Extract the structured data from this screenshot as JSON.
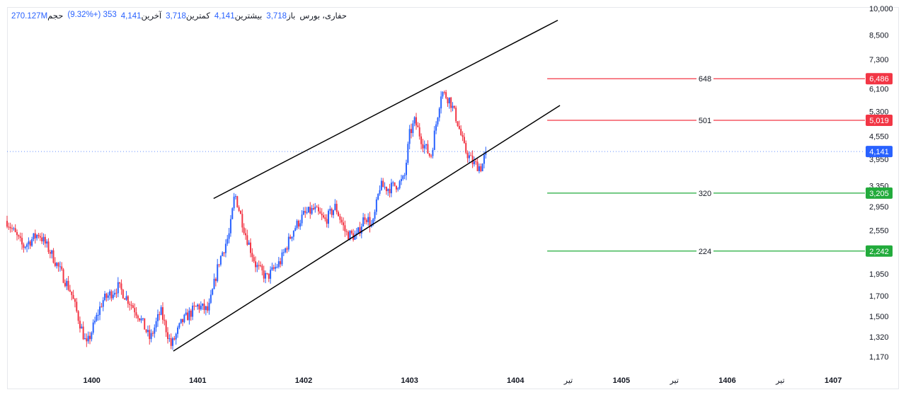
{
  "legend": {
    "symbol": "حفاری، بورس",
    "open_label": "باز",
    "open_value": "3,718",
    "high_label": "بیشترین",
    "high_value": "4,141",
    "low_label": "کمترین",
    "low_value": "3,718",
    "last_label": "آخرین",
    "last_value": "4,141",
    "change_value": "353 (+9.32%)",
    "volume_label": "حجم",
    "volume_value": "270.127M"
  },
  "colors": {
    "up": "#2962ff",
    "down": "#f23645",
    "resistance": "#f23645",
    "support": "#22ab3c",
    "channel": "#000000",
    "price_tag": "#2962ff"
  },
  "chart_data": {
    "type": "candlestick",
    "y_scale": "log",
    "ylim": [
      1100,
      10000
    ],
    "y_ticks": [
      "10,000",
      "8,500",
      "7,300",
      "6,100",
      "5,300",
      "4,550",
      "3,950",
      "3,350",
      "2,950",
      "2,550",
      "1,950",
      "1,700",
      "1,500",
      "1,320",
      "1,170"
    ],
    "y_tick_values": [
      10000,
      8500,
      7300,
      6100,
      5300,
      4550,
      3950,
      3350,
      2950,
      2550,
      1950,
      1700,
      1500,
      1320,
      1170
    ],
    "x_labels": [
      "1400",
      "1401",
      "1402",
      "1403",
      "1404",
      "تیر",
      "1405",
      "تیر",
      "1406",
      "تیر",
      "1407"
    ],
    "x_label_positions": [
      1400.0,
      1401.0,
      1402.0,
      1403.0,
      1404.0,
      1404.5,
      1405.0,
      1405.5,
      1406.0,
      1406.5,
      1407.0
    ],
    "xlim": [
      1399.2,
      1407.3
    ],
    "last_price": 4141,
    "last_price_label": "4,141",
    "price_path": [
      [
        1399.2,
        2700
      ],
      [
        1399.35,
        2300
      ],
      [
        1399.5,
        2500
      ],
      [
        1399.62,
        2200
      ],
      [
        1399.8,
        1750
      ],
      [
        1399.95,
        1250
      ],
      [
        1400.1,
        1650
      ],
      [
        1400.25,
        1800
      ],
      [
        1400.35,
        1650
      ],
      [
        1400.45,
        1500
      ],
      [
        1400.55,
        1300
      ],
      [
        1400.65,
        1550
      ],
      [
        1400.75,
        1250
      ],
      [
        1400.85,
        1450
      ],
      [
        1400.95,
        1550
      ],
      [
        1401.0,
        1600
      ],
      [
        1401.1,
        1550
      ],
      [
        1401.2,
        2100
      ],
      [
        1401.3,
        2500
      ],
      [
        1401.35,
        3200
      ],
      [
        1401.45,
        2500
      ],
      [
        1401.55,
        2050
      ],
      [
        1401.65,
        1900
      ],
      [
        1401.78,
        2100
      ],
      [
        1401.9,
        2550
      ],
      [
        1402.0,
        2800
      ],
      [
        1402.1,
        2900
      ],
      [
        1402.2,
        2700
      ],
      [
        1402.3,
        2950
      ],
      [
        1402.4,
        2500
      ],
      [
        1402.5,
        2450
      ],
      [
        1402.58,
        2800
      ],
      [
        1402.65,
        2600
      ],
      [
        1402.72,
        3350
      ],
      [
        1402.8,
        3300
      ],
      [
        1402.9,
        3400
      ],
      [
        1402.95,
        3500
      ],
      [
        1403.0,
        4600
      ],
      [
        1403.05,
        5000
      ],
      [
        1403.12,
        4400
      ],
      [
        1403.2,
        4000
      ],
      [
        1403.3,
        6000
      ],
      [
        1403.38,
        5700
      ],
      [
        1403.45,
        5000
      ],
      [
        1403.52,
        4200
      ],
      [
        1403.6,
        3850
      ],
      [
        1403.68,
        3750
      ],
      [
        1403.72,
        4141
      ]
    ],
    "candle_count": 290,
    "channel_upper": {
      "x": [
        1401.15,
        1404.4
      ],
      "y": [
        3100,
        9300
      ]
    },
    "channel_lower": {
      "x": [
        1400.77,
        1404.42
      ],
      "y": [
        1210,
        5500
      ]
    },
    "levels": [
      {
        "label": "648",
        "value": 6486,
        "tag": "6,486",
        "kind": "resistance"
      },
      {
        "label": "501",
        "value": 5019,
        "tag": "5,019",
        "kind": "resistance"
      },
      {
        "label": "320",
        "value": 3205,
        "tag": "3,205",
        "kind": "support"
      },
      {
        "label": "224",
        "value": 2242,
        "tag": "2,242",
        "kind": "support"
      }
    ],
    "levels_x_start": 1404.3
  }
}
